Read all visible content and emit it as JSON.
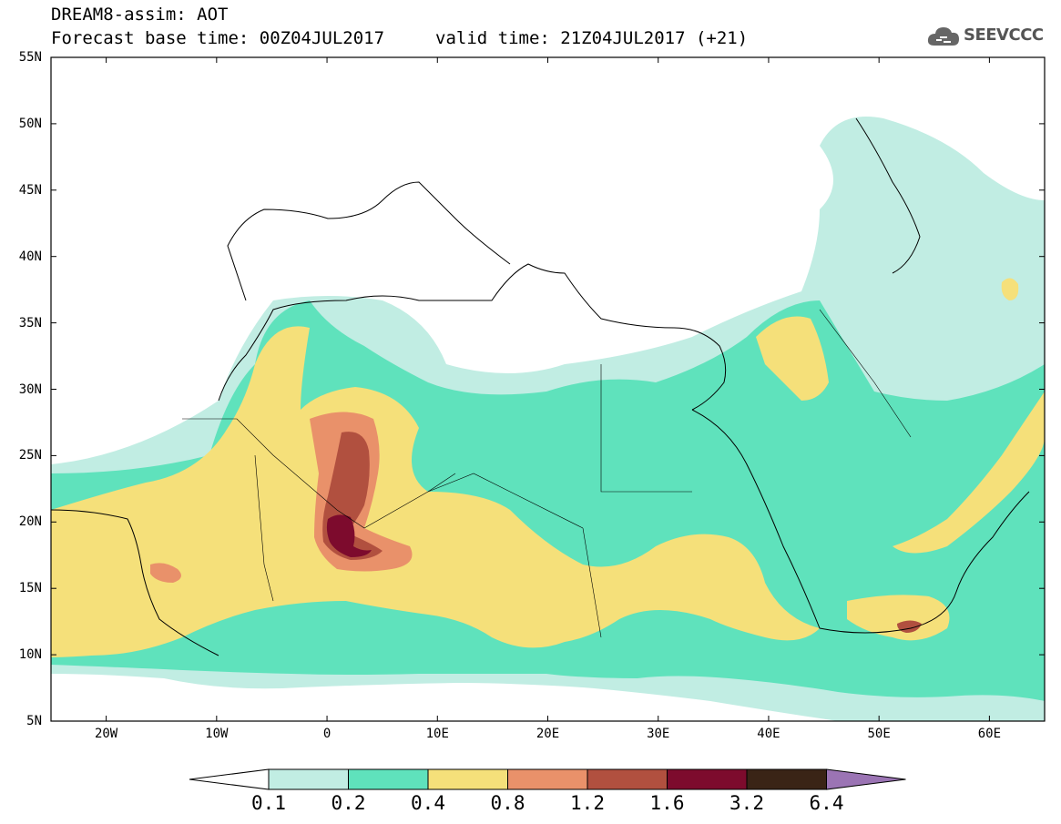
{
  "header": {
    "line1": "DREAM8-assim: AOT",
    "line2": "Forecast base time: 00Z04JUL2017",
    "valid": "valid time: 21Z04JUL2017 (+21)",
    "logo_text": "SEEVCCC",
    "logo_icon": "cloud-icon"
  },
  "map": {
    "lon_range": [
      -25,
      65
    ],
    "lat_range": [
      5,
      55
    ],
    "lat_labels": [
      "55N",
      "50N",
      "45N",
      "40N",
      "35N",
      "30N",
      "25N",
      "20N",
      "15N",
      "10N",
      "5N"
    ],
    "lon_labels": [
      "20W",
      "10W",
      "0",
      "10E",
      "20E",
      "30E",
      "40E",
      "50E",
      "60E"
    ],
    "field": "AOT"
  },
  "colorbar": {
    "levels": [
      "0.1",
      "0.2",
      "0.4",
      "0.8",
      "1.2",
      "1.6",
      "3.2",
      "6.4"
    ],
    "colors": [
      "#ffffff",
      "#c1ede3",
      "#5fe2bc",
      "#f5e07a",
      "#e9916a",
      "#b1503f",
      "#7d0b2d",
      "#3a2416",
      "#9b74b4"
    ]
  }
}
